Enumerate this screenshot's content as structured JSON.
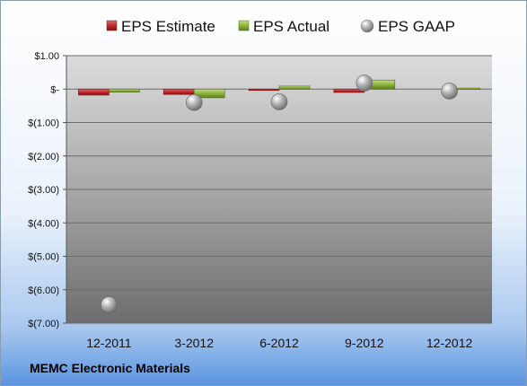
{
  "footer": {
    "company": "MEMC Electronic Materials"
  },
  "colors": {
    "estimate": "#c0292b",
    "actual": "#8fb43c",
    "gaap": "#a8a8a8"
  },
  "chart_data": {
    "type": "bar",
    "categories": [
      "12-2011",
      "3-2012",
      "6-2012",
      "9-2012",
      "12-2012"
    ],
    "series": [
      {
        "name": "EPS Estimate",
        "kind": "bar",
        "values": [
          -0.18,
          -0.16,
          -0.04,
          -0.1,
          null
        ]
      },
      {
        "name": "EPS Actual",
        "kind": "bar",
        "values": [
          -0.09,
          -0.26,
          0.09,
          0.27,
          0.03
        ]
      },
      {
        "name": "EPS GAAP",
        "kind": "marker",
        "values": [
          -6.45,
          -0.4,
          -0.38,
          0.18,
          -0.06
        ]
      }
    ],
    "y_ticks": [
      {
        "value": 1,
        "label": "$1.00"
      },
      {
        "value": 0,
        "label": "$-"
      },
      {
        "value": -1,
        "label": "$(1.00)"
      },
      {
        "value": -2,
        "label": "$(2.00)"
      },
      {
        "value": -3,
        "label": "$(3.00)"
      },
      {
        "value": -4,
        "label": "$(4.00)"
      },
      {
        "value": -5,
        "label": "$(5.00)"
      },
      {
        "value": -6,
        "label": "$(6.00)"
      },
      {
        "value": -7,
        "label": "$(7.00)"
      }
    ],
    "ylim": [
      -7,
      1
    ],
    "grid": true,
    "legend_position": "top"
  }
}
